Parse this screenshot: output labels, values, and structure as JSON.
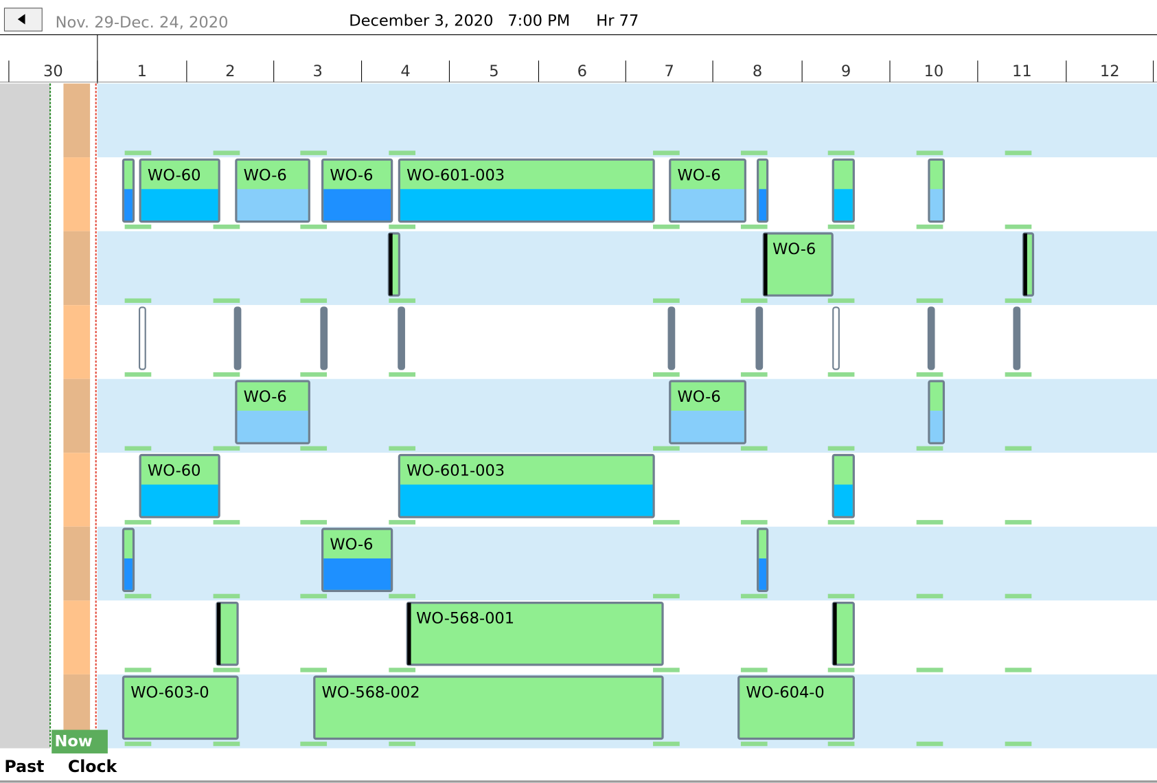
{
  "header": {
    "range": "Nov. 29-Dec. 24, 2020",
    "date": "December 3, 2020",
    "time": "7:00 PM",
    "hour": "Hr 77"
  },
  "days": [
    "30",
    "1",
    "2",
    "3",
    "4",
    "5",
    "6",
    "7",
    "8",
    "9",
    "10",
    "11",
    "12"
  ],
  "blocks": [
    "WO-60",
    "WO-6",
    "WO-6",
    "WO-601-003",
    "WO-6",
    "WO-6",
    "WO-6",
    "WO-6",
    "WO-60",
    "WO-601-003",
    "WO-6",
    "WO-568-001",
    "WO-603-0",
    "WO-568-002",
    "WO-604-0"
  ],
  "footer": {
    "now": "Now",
    "past": "Past",
    "clock": "Clock"
  }
}
